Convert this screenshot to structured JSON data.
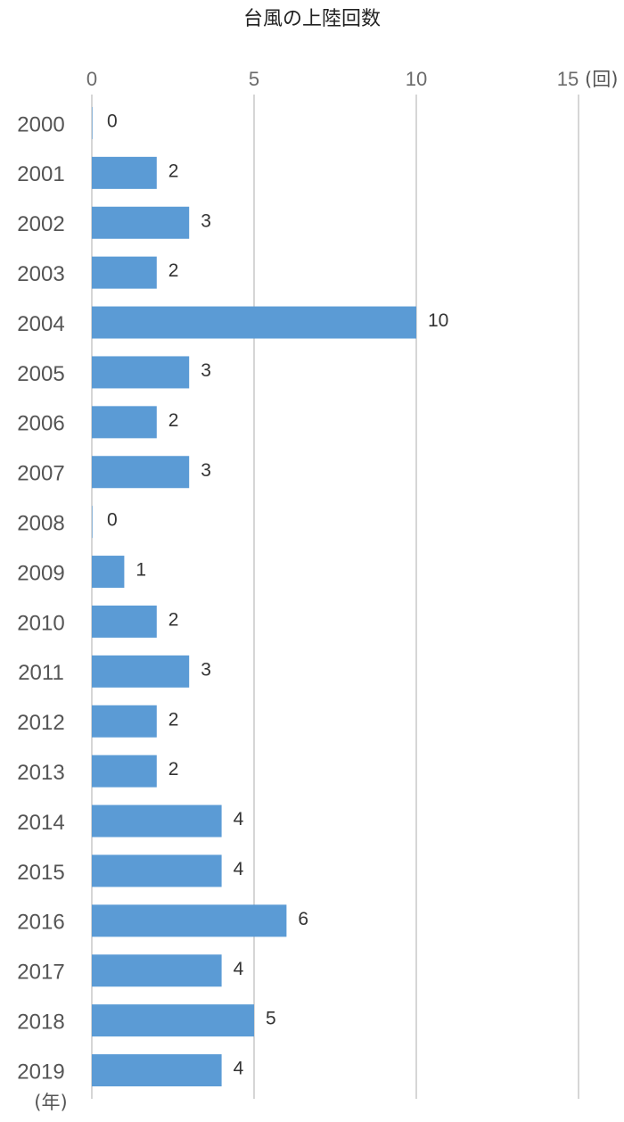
{
  "chart_data": {
    "type": "bar",
    "orientation": "horizontal",
    "title": "台風の上陸回数",
    "x_unit": "(回)",
    "y_unit": "(年)",
    "xlim": [
      0,
      15
    ],
    "x_ticks": [
      "0",
      "5",
      "10",
      "15"
    ],
    "grid": true,
    "bar_color": "#5b9bd5",
    "categories": [
      "2000",
      "2001",
      "2002",
      "2003",
      "2004",
      "2005",
      "2006",
      "2007",
      "2008",
      "2009",
      "2010",
      "2011",
      "2012",
      "2013",
      "2014",
      "2015",
      "2016",
      "2017",
      "2018",
      "2019"
    ],
    "values": [
      0,
      2,
      3,
      2,
      10,
      3,
      2,
      3,
      0,
      1,
      2,
      3,
      2,
      2,
      4,
      4,
      6,
      4,
      5,
      4
    ]
  }
}
